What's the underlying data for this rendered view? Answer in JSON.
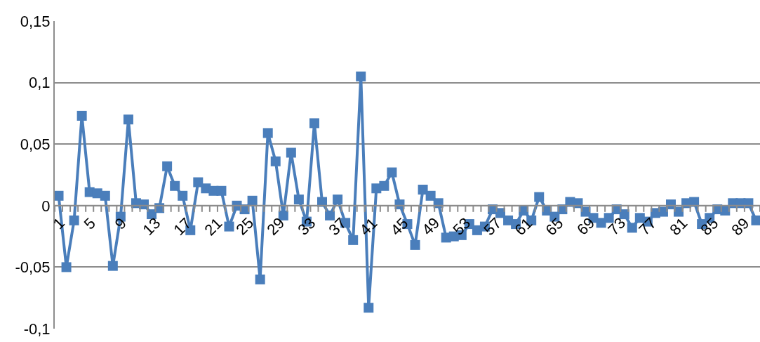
{
  "chart_data": {
    "type": "line",
    "marker": "square",
    "grid": "y",
    "legend": false,
    "line_style": "solid",
    "categories": [
      "1",
      null,
      null,
      null,
      "5",
      null,
      null,
      null,
      "9",
      null,
      null,
      null,
      "13",
      null,
      null,
      null,
      "17",
      null,
      null,
      null,
      "21",
      null,
      null,
      null,
      "25",
      null,
      null,
      null,
      "29",
      null,
      null,
      null,
      "33",
      null,
      null,
      null,
      "37",
      null,
      null,
      null,
      "41",
      null,
      null,
      null,
      "45",
      null,
      null,
      null,
      "49",
      null,
      null,
      null,
      "53",
      null,
      null,
      null,
      "57",
      null,
      null,
      null,
      "61",
      null,
      null,
      null,
      "65",
      null,
      null,
      null,
      "69",
      null,
      null,
      null,
      "73",
      null,
      null,
      null,
      "77",
      null,
      null,
      null,
      "81",
      null,
      null,
      null,
      "85",
      null,
      null,
      null,
      "89",
      null,
      null
    ],
    "ylim": [
      -0.1,
      0.15
    ],
    "yticks": [
      {
        "value": -0.1,
        "label": "-0,1"
      },
      {
        "value": -0.05,
        "label": "-0,05"
      },
      {
        "value": 0,
        "label": "0"
      },
      {
        "value": 0.05,
        "label": "0,05"
      },
      {
        "value": 0.1,
        "label": "0,1"
      },
      {
        "value": 0.15,
        "label": "0,15"
      }
    ],
    "series": [
      {
        "color": "#4a7ebb",
        "values": [
          0.008,
          -0.05,
          -0.012,
          0.073,
          0.011,
          0.01,
          0.008,
          -0.049,
          -0.009,
          0.07,
          0.002,
          0.001,
          -0.007,
          -0.002,
          0.032,
          0.016,
          0.008,
          -0.02,
          0.019,
          0.014,
          0.012,
          0.012,
          -0.017,
          0.0,
          -0.003,
          0.004,
          -0.06,
          0.059,
          0.036,
          -0.008,
          0.043,
          0.005,
          -0.013,
          0.067,
          0.003,
          -0.008,
          0.005,
          -0.014,
          -0.028,
          0.105,
          -0.083,
          0.014,
          0.016,
          0.027,
          0.001,
          -0.015,
          -0.032,
          0.013,
          0.008,
          0.002,
          -0.026,
          -0.025,
          -0.024,
          -0.015,
          -0.02,
          -0.017,
          -0.003,
          -0.006,
          -0.012,
          -0.015,
          -0.004,
          -0.012,
          0.007,
          -0.004,
          -0.009,
          -0.003,
          0.003,
          0.002,
          -0.005,
          -0.01,
          -0.014,
          -0.01,
          -0.003,
          -0.007,
          -0.018,
          -0.01,
          -0.013,
          -0.006,
          -0.005,
          0.001,
          -0.005,
          0.002,
          0.003,
          -0.015,
          -0.01,
          -0.003,
          -0.004,
          0.002,
          0.002,
          0.002,
          -0.012
        ]
      }
    ]
  }
}
